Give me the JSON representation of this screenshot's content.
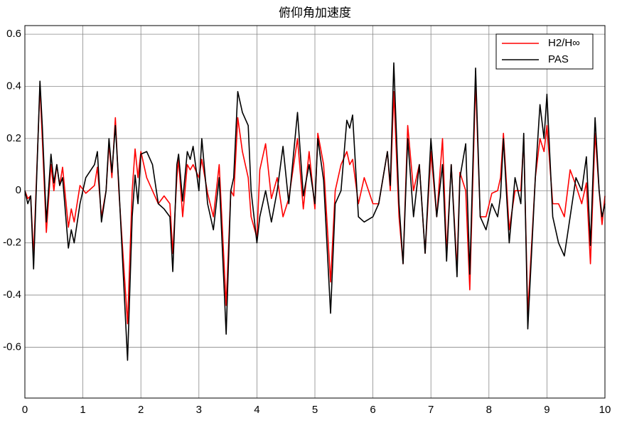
{
  "chart_data": {
    "type": "line",
    "title": "俯仰角加速度",
    "x": [
      0,
      0.05,
      0.1,
      0.15,
      0.26,
      0.3,
      0.37,
      0.45,
      0.5,
      0.55,
      0.6,
      0.65,
      0.75,
      0.8,
      0.85,
      0.95,
      1.05,
      1.2,
      1.25,
      1.32,
      1.4,
      1.45,
      1.5,
      1.56,
      1.62,
      1.77,
      1.85,
      1.9,
      1.95,
      2.0,
      2.1,
      2.2,
      2.3,
      2.4,
      2.5,
      2.55,
      2.62,
      2.65,
      2.72,
      2.8,
      2.85,
      2.9,
      3.0,
      3.05,
      3.15,
      3.25,
      3.35,
      3.47,
      3.55,
      3.6,
      3.67,
      3.75,
      3.85,
      3.9,
      4.0,
      4.05,
      4.15,
      4.25,
      4.35,
      4.45,
      4.55,
      4.7,
      4.8,
      4.9,
      5.0,
      5.05,
      5.15,
      5.27,
      5.35,
      5.45,
      5.55,
      5.6,
      5.65,
      5.75,
      5.85,
      6.0,
      6.1,
      6.25,
      6.3,
      6.36,
      6.45,
      6.52,
      6.6,
      6.7,
      6.8,
      6.9,
      7.0,
      7.1,
      7.2,
      7.27,
      7.35,
      7.45,
      7.5,
      7.6,
      7.67,
      7.77,
      7.85,
      7.95,
      8.05,
      8.15,
      8.2,
      8.25,
      8.35,
      8.45,
      8.55,
      8.6,
      8.67,
      8.8,
      8.88,
      8.95,
      9.0,
      9.1,
      9.2,
      9.3,
      9.4,
      9.5,
      9.6,
      9.68,
      9.75,
      9.83,
      9.9,
      9.95,
      10.0
    ],
    "series": [
      {
        "name": "H2/H∞",
        "color": "#ff0000",
        "values": [
          0,
          -0.03,
          -0.02,
          -0.25,
          0.4,
          0.2,
          -0.16,
          0.1,
          0.0,
          0.1,
          0.02,
          0.09,
          -0.14,
          -0.07,
          -0.12,
          0.02,
          -0.01,
          0.02,
          0.09,
          -0.1,
          0.0,
          0.18,
          0.05,
          0.28,
          0.0,
          -0.51,
          0.0,
          0.16,
          0.05,
          0.15,
          0.05,
          0.0,
          -0.05,
          -0.02,
          -0.05,
          -0.24,
          0.05,
          0.12,
          -0.1,
          0.1,
          0.08,
          0.1,
          0.05,
          0.12,
          -0.01,
          -0.1,
          0.1,
          -0.44,
          0.0,
          -0.02,
          0.28,
          0.15,
          0.05,
          -0.1,
          -0.18,
          0.08,
          0.18,
          -0.03,
          0.05,
          -0.1,
          -0.03,
          0.2,
          -0.07,
          0.15,
          -0.07,
          0.22,
          0.1,
          -0.35,
          0.0,
          0.1,
          0.15,
          0.1,
          0.12,
          -0.05,
          0.05,
          -0.05,
          -0.05,
          0.15,
          0.0,
          0.38,
          -0.1,
          -0.28,
          0.25,
          0.0,
          0.1,
          -0.24,
          0.15,
          -0.1,
          0.2,
          -0.24,
          0.1,
          -0.3,
          0.07,
          0.0,
          -0.38,
          0.42,
          -0.1,
          -0.1,
          -0.01,
          0.0,
          0.05,
          0.22,
          -0.15,
          0.0,
          0.0,
          0.2,
          -0.47,
          0.05,
          0.2,
          0.15,
          0.25,
          -0.05,
          -0.05,
          -0.1,
          0.08,
          0.02,
          -0.05,
          0.03,
          -0.28,
          0.22,
          0.0,
          -0.13,
          -0.02
        ]
      },
      {
        "name": "PAS",
        "color": "#000000",
        "values": [
          0,
          -0.05,
          -0.02,
          -0.3,
          0.42,
          0.25,
          -0.12,
          0.14,
          0.03,
          0.1,
          0.02,
          0.05,
          -0.22,
          -0.15,
          -0.2,
          -0.05,
          0.05,
          0.1,
          0.15,
          -0.12,
          0.0,
          0.2,
          0.07,
          0.25,
          0.02,
          -0.65,
          -0.1,
          0.06,
          -0.05,
          0.14,
          0.15,
          0.1,
          -0.05,
          -0.07,
          -0.1,
          -0.31,
          0.1,
          0.14,
          -0.04,
          0.15,
          0.12,
          0.17,
          0.0,
          0.2,
          -0.05,
          -0.15,
          0.05,
          -0.55,
          0.0,
          0.05,
          0.38,
          0.3,
          0.25,
          0.0,
          -0.2,
          -0.1,
          0.0,
          -0.12,
          0.0,
          0.17,
          -0.05,
          0.3,
          -0.02,
          0.1,
          -0.05,
          0.2,
          0.04,
          -0.47,
          -0.05,
          0.0,
          0.27,
          0.24,
          0.29,
          -0.1,
          -0.12,
          -0.1,
          -0.05,
          0.15,
          0.02,
          0.49,
          -0.05,
          -0.28,
          0.2,
          -0.1,
          0.1,
          -0.24,
          0.2,
          -0.1,
          0.1,
          -0.27,
          0.1,
          -0.33,
          0.05,
          0.18,
          -0.32,
          0.47,
          -0.1,
          -0.15,
          -0.05,
          -0.1,
          -0.02,
          0.2,
          -0.2,
          0.05,
          -0.05,
          0.22,
          -0.53,
          0.05,
          0.33,
          0.2,
          0.37,
          -0.1,
          -0.2,
          -0.25,
          -0.1,
          0.05,
          0.0,
          0.13,
          -0.21,
          0.28,
          0.0,
          -0.1,
          -0.05
        ]
      }
    ],
    "xlim": [
      0,
      10
    ],
    "xticks": [
      0,
      1,
      2,
      3,
      4,
      5,
      6,
      7,
      8,
      9,
      10
    ],
    "ylim": [
      -0.795,
      0.633
    ],
    "yticks": [
      -0.6,
      -0.4,
      -0.2,
      0,
      0.2,
      0.4,
      0.6
    ],
    "grid": true,
    "legend": "upper right"
  }
}
